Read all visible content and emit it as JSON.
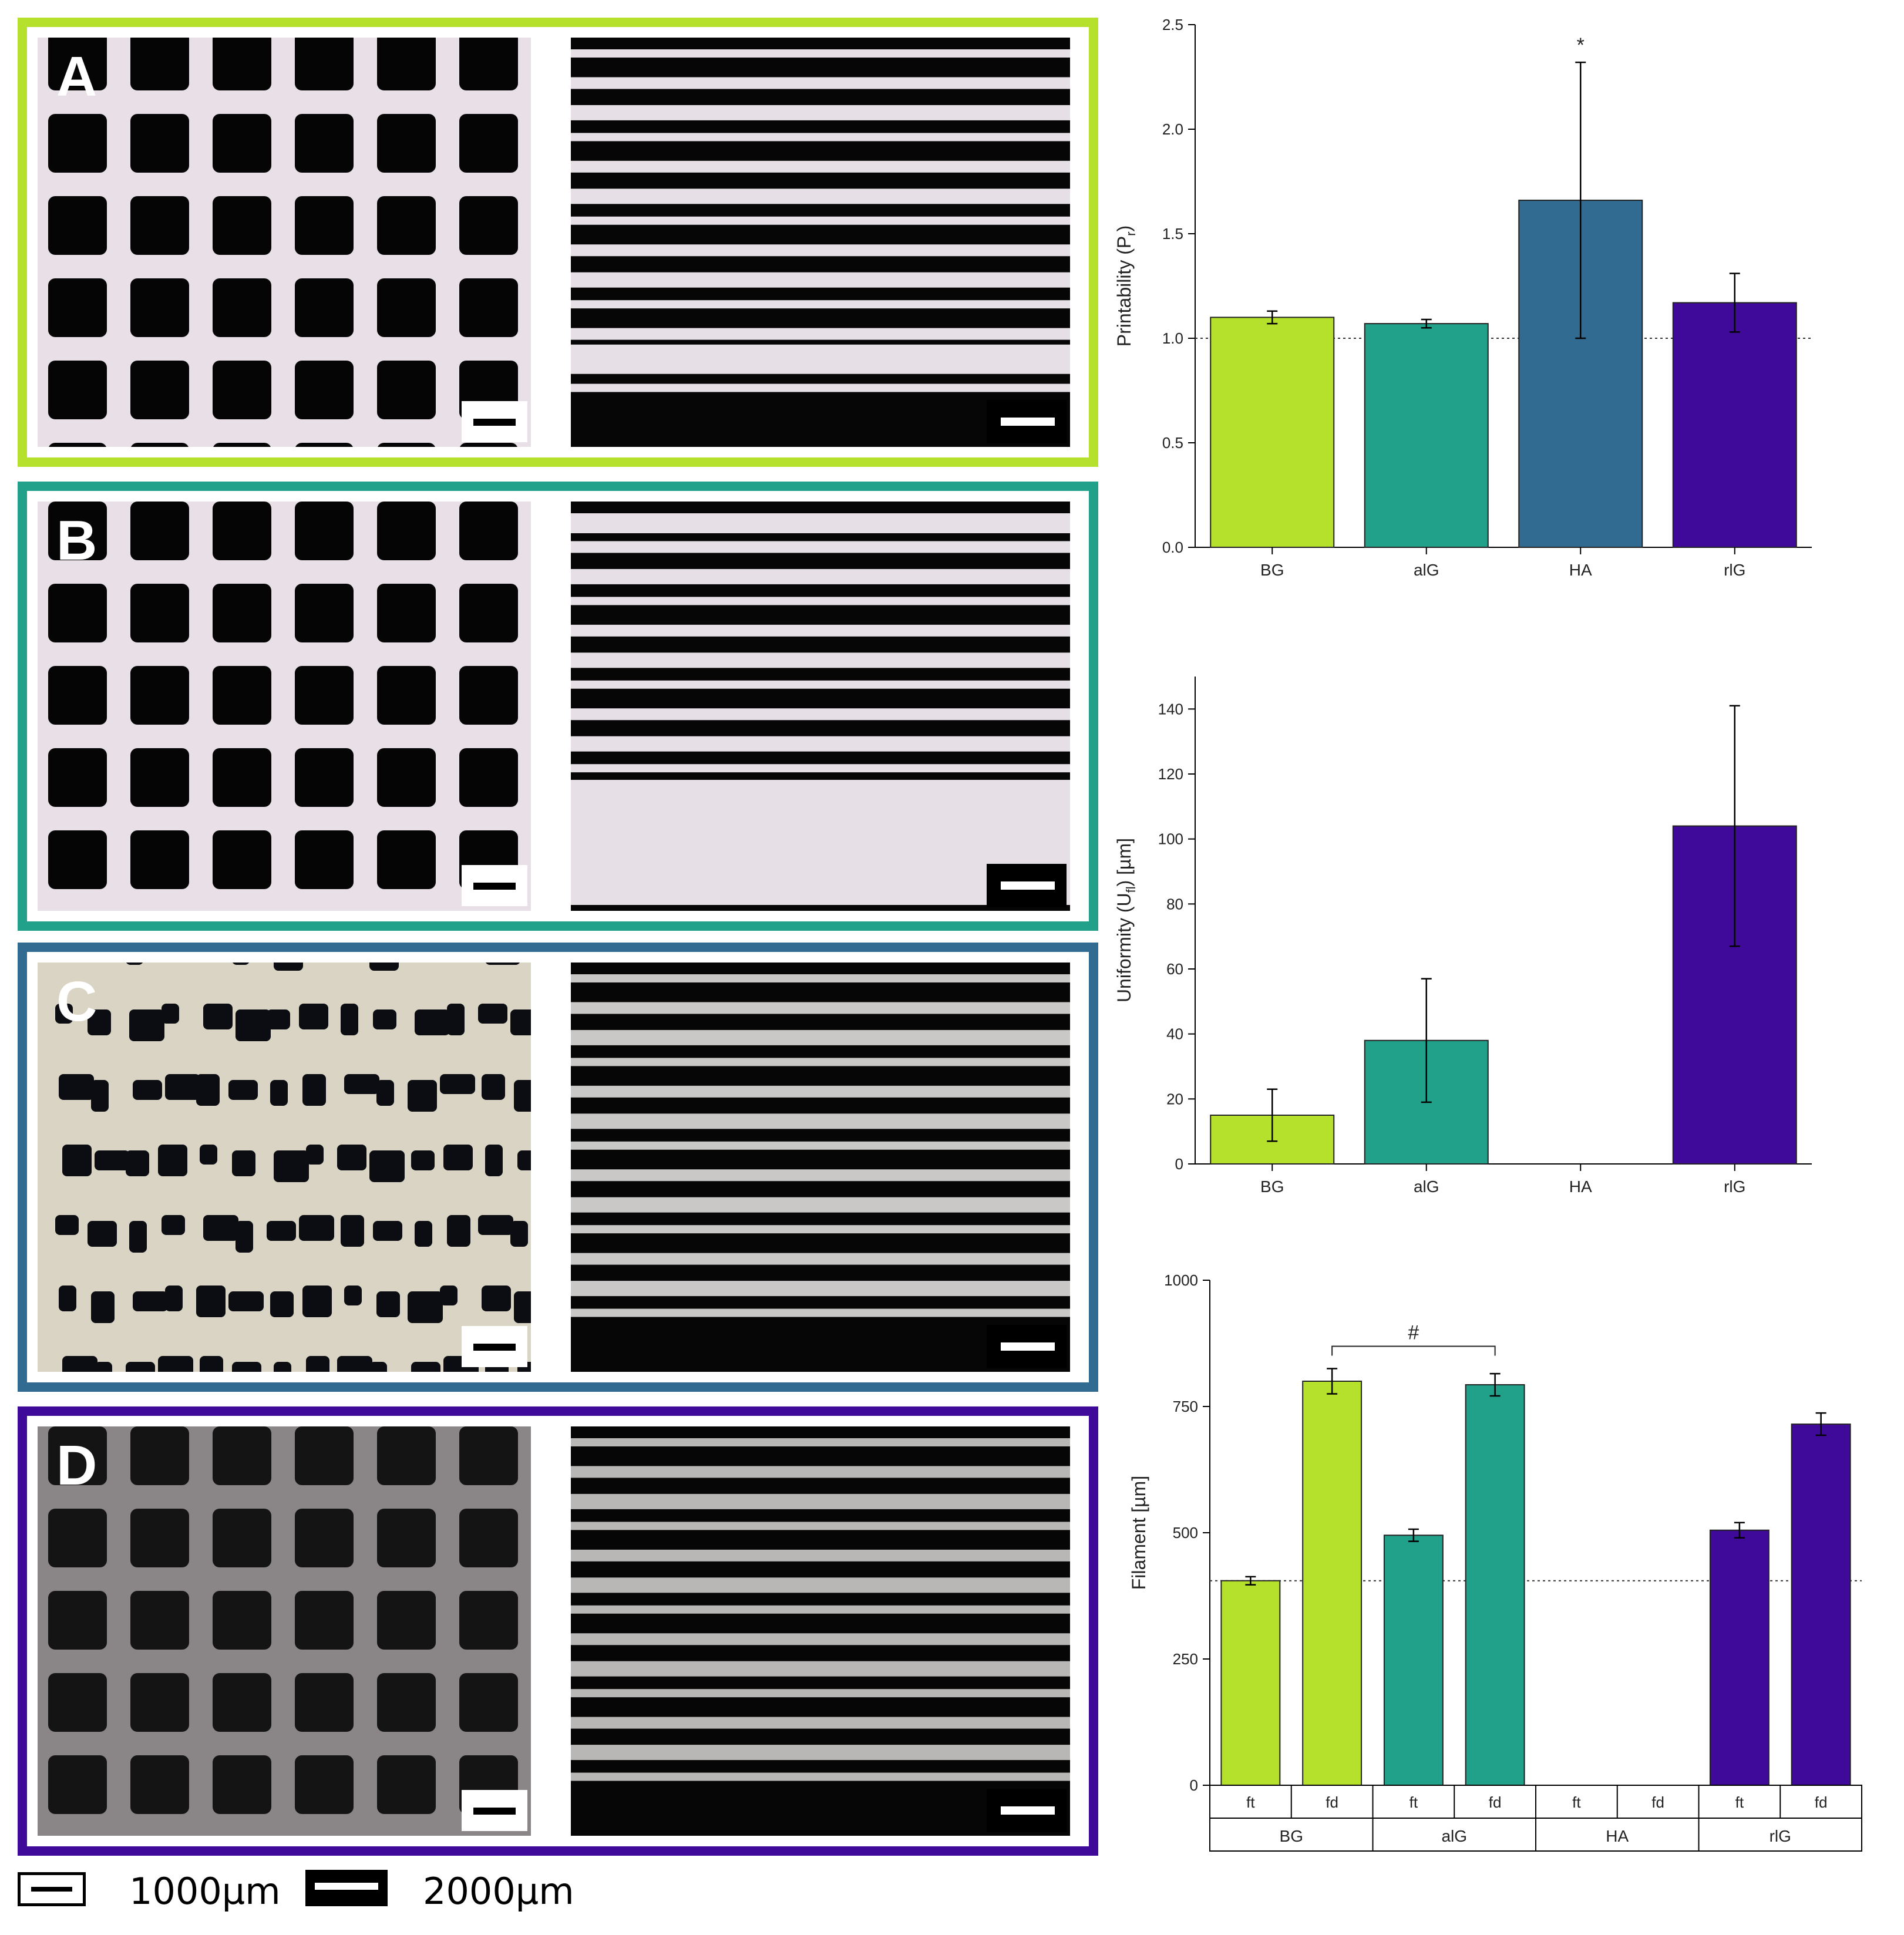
{
  "panels": [
    {
      "label": "A",
      "border_color": "#b5e02b",
      "fill_color": "#b5e02b",
      "grid": "regular_light"
    },
    {
      "label": "B",
      "border_color": "#21a08a",
      "fill_color": "#21a08a",
      "grid": "regular_light"
    },
    {
      "label": "C",
      "border_color": "#316b91",
      "fill_color": "#316b91",
      "grid": "irregular"
    },
    {
      "label": "D",
      "border_color": "#3f0a99",
      "fill_color": "#3f0a99",
      "grid": "regular_dark"
    }
  ],
  "scale_legend": {
    "small": "1000µm",
    "large": "2000µm"
  },
  "chart_data": [
    {
      "type": "bar",
      "categories": [
        "BG",
        "alG",
        "HA",
        "rlG"
      ],
      "values": [
        1.1,
        1.07,
        1.66,
        1.17
      ],
      "errors": [
        0.03,
        0.02,
        0.66,
        0.14
      ],
      "colors": [
        "#b5e02b",
        "#21a08a",
        "#316b91",
        "#3f0a99"
      ],
      "ylabel": "Printability (P",
      "ylabel_sub": "r",
      "ylabel_end": ")",
      "ylim": [
        0,
        2.5
      ],
      "yticks": [
        "0.0",
        "0.5",
        "1.0",
        "1.5",
        "2.0",
        "2.5"
      ],
      "reference_line": 1.0,
      "annotation": {
        "text": "*",
        "category": "HA"
      }
    },
    {
      "type": "bar",
      "categories": [
        "BG",
        "alG",
        "HA",
        "rlG"
      ],
      "values": [
        15,
        38,
        null,
        104
      ],
      "errors": [
        8,
        19,
        null,
        37
      ],
      "colors": [
        "#b5e02b",
        "#21a08a",
        "#316b91",
        "#3f0a99"
      ],
      "ylabel": "Uniformity (U",
      "ylabel_sub": "fl",
      "ylabel_end": ") [µm]",
      "ylim": [
        0,
        150
      ],
      "yticks": [
        "0",
        "20",
        "40",
        "60",
        "80",
        "100",
        "120",
        "140"
      ]
    },
    {
      "type": "bar",
      "groups": [
        "BG",
        "alG",
        "HA",
        "rlG"
      ],
      "subcategories": [
        "ft",
        "fd"
      ],
      "series": [
        {
          "name": "ft",
          "values": [
            405,
            495,
            null,
            505
          ],
          "errors": [
            8,
            12,
            null,
            15
          ]
        },
        {
          "name": "fd",
          "values": [
            800,
            793,
            null,
            715
          ],
          "errors": [
            25,
            22,
            null,
            22
          ]
        }
      ],
      "colors": [
        "#b5e02b",
        "#21a08a",
        "#316b91",
        "#3f0a99"
      ],
      "ylabel": "Filament [µm]",
      "ylim": [
        0,
        1000
      ],
      "yticks": [
        "0",
        "250",
        "500",
        "750",
        "1000"
      ],
      "reference_line": 405,
      "annotation": {
        "text": "#",
        "from": "BG",
        "to": "alG"
      }
    }
  ]
}
